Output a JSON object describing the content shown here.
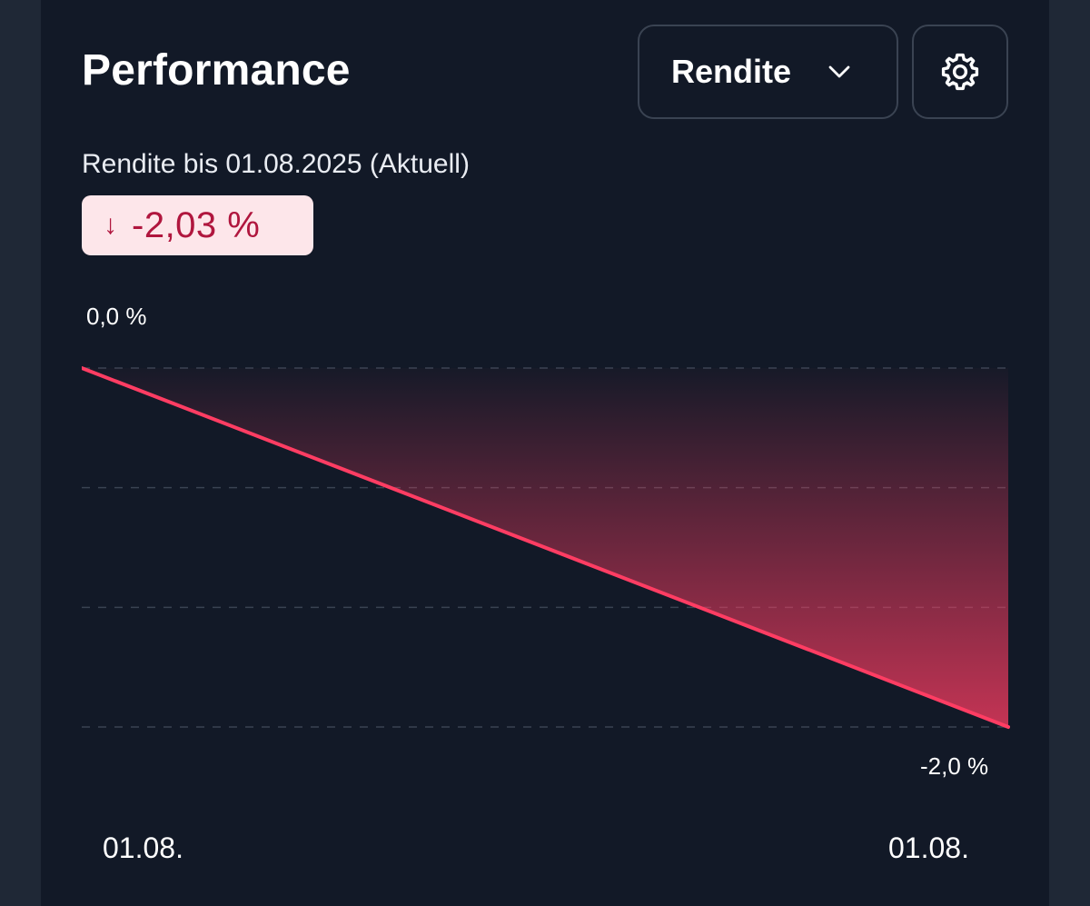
{
  "header": {
    "title": "Performance",
    "dropdown_label": "Rendite"
  },
  "summary": {
    "subtitle": "Rendite bis 01.08.2025 (Aktuell)",
    "badge_arrow": "↓",
    "badge_value": "-2,03 %"
  },
  "colors": {
    "background": "#121927",
    "line": "#ff3d63",
    "badge_bg": "#fde6ea",
    "badge_text": "#b0163e"
  },
  "chart_data": {
    "type": "area",
    "x": [
      "01.08.",
      "01.08."
    ],
    "y_values": [
      0.0,
      -2.03
    ],
    "y_labels": [
      "0,0 %",
      "-2,0 %"
    ],
    "ylim": [
      -2.0,
      0.0
    ],
    "x_labels": [
      "01.08.",
      "01.08."
    ],
    "grid": true
  }
}
